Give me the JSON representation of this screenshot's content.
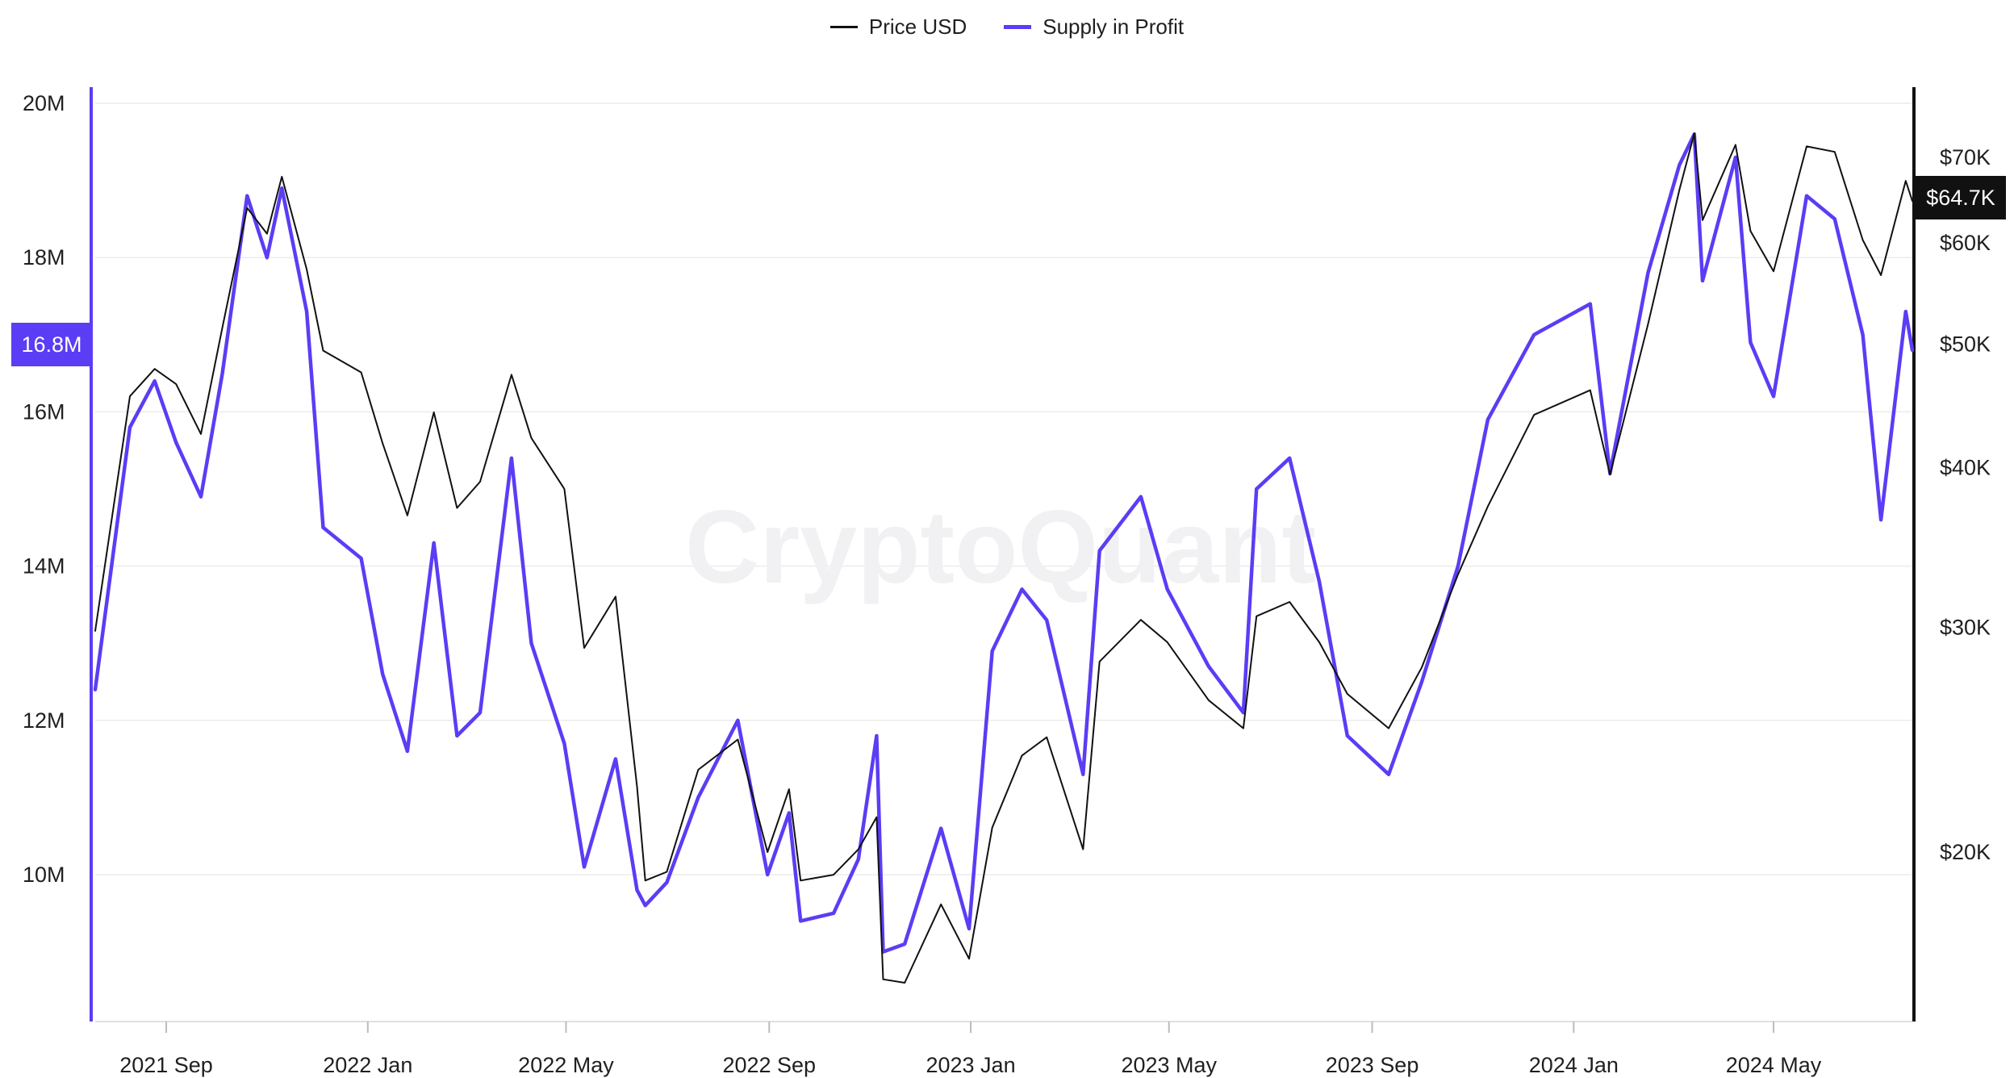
{
  "legend": {
    "price_label": "Price USD",
    "supply_label": "Supply in Profit"
  },
  "watermark": "CryptoQuant",
  "colors": {
    "price": "#111111",
    "supply": "#5a3df5",
    "grid": "#ececec",
    "badge_price_bg": "#111111",
    "badge_supply_bg": "#5a3df5"
  },
  "badges": {
    "price_current": "$64.7K",
    "supply_current": "16.8M"
  },
  "chart_data": {
    "type": "line",
    "x_axis": {
      "type": "date",
      "range": [
        "2021-07-20",
        "2024-07-24"
      ],
      "tick_labels": [
        "2021 Sep",
        "2022 Jan",
        "2022 May",
        "2022 Sep",
        "2023 Jan",
        "2023 May",
        "2023 Sep",
        "2024 Jan",
        "2024 May"
      ],
      "tick_dates": [
        "2021-09-01",
        "2022-01-01",
        "2022-05-01",
        "2022-09-01",
        "2023-01-01",
        "2023-05-01",
        "2023-09-01",
        "2024-01-01",
        "2024-05-01"
      ]
    },
    "y_left": {
      "series": "Supply in Profit",
      "range": [
        8000000,
        20000000
      ],
      "ticks": [
        10000000,
        12000000,
        14000000,
        16000000,
        18000000,
        20000000
      ],
      "tick_labels": [
        "10M",
        "12M",
        "14M",
        "16M",
        "18M",
        "20M"
      ]
    },
    "y_right": {
      "series": "Price USD",
      "scale": "log",
      "ticks": [
        20000,
        30000,
        40000,
        50000,
        60000,
        70000
      ],
      "tick_labels": [
        "$20K",
        "$30K",
        "$40K",
        "$50K",
        "$60K",
        "$70K"
      ]
    },
    "grid": true,
    "legend_position": "top-center",
    "series": [
      {
        "name": "Price USD",
        "axis": "right",
        "points": [
          [
            "2021-07-20",
            29800
          ],
          [
            "2021-08-10",
            45500
          ],
          [
            "2021-08-25",
            47800
          ],
          [
            "2021-09-07",
            46500
          ],
          [
            "2021-09-22",
            42500
          ],
          [
            "2021-10-05",
            51500
          ],
          [
            "2021-10-20",
            63900
          ],
          [
            "2021-11-01",
            61000
          ],
          [
            "2021-11-10",
            67600
          ],
          [
            "2021-11-25",
            57200
          ],
          [
            "2021-12-05",
            49400
          ],
          [
            "2021-12-28",
            47500
          ],
          [
            "2022-01-10",
            41800
          ],
          [
            "2022-01-25",
            36700
          ],
          [
            "2022-02-10",
            44200
          ],
          [
            "2022-02-24",
            37200
          ],
          [
            "2022-03-10",
            39000
          ],
          [
            "2022-03-29",
            47300
          ],
          [
            "2022-04-10",
            42200
          ],
          [
            "2022-04-30",
            38500
          ],
          [
            "2022-05-12",
            28900
          ],
          [
            "2022-05-31",
            31700
          ],
          [
            "2022-06-13",
            22500
          ],
          [
            "2022-06-18",
            19000
          ],
          [
            "2022-07-01",
            19300
          ],
          [
            "2022-07-20",
            23200
          ],
          [
            "2022-08-13",
            24500
          ],
          [
            "2022-08-31",
            20000
          ],
          [
            "2022-09-13",
            22400
          ],
          [
            "2022-09-20",
            19000
          ],
          [
            "2022-10-10",
            19200
          ],
          [
            "2022-10-25",
            20100
          ],
          [
            "2022-11-05",
            21300
          ],
          [
            "2022-11-09",
            15900
          ],
          [
            "2022-11-22",
            15800
          ],
          [
            "2022-12-14",
            18200
          ],
          [
            "2022-12-31",
            16500
          ],
          [
            "2023-01-14",
            20900
          ],
          [
            "2023-02-01",
            23800
          ],
          [
            "2023-02-16",
            24600
          ],
          [
            "2023-03-10",
            20100
          ],
          [
            "2023-03-20",
            28200
          ],
          [
            "2023-04-14",
            30400
          ],
          [
            "2023-04-30",
            29200
          ],
          [
            "2023-05-25",
            26300
          ],
          [
            "2023-06-15",
            25000
          ],
          [
            "2023-06-23",
            30600
          ],
          [
            "2023-07-13",
            31400
          ],
          [
            "2023-07-31",
            29200
          ],
          [
            "2023-08-17",
            26600
          ],
          [
            "2023-09-11",
            25000
          ],
          [
            "2023-10-01",
            27900
          ],
          [
            "2023-10-23",
            33000
          ],
          [
            "2023-11-10",
            37300
          ],
          [
            "2023-12-08",
            44000
          ],
          [
            "2024-01-11",
            46000
          ],
          [
            "2024-01-23",
            39500
          ],
          [
            "2024-02-15",
            51800
          ],
          [
            "2024-03-05",
            66000
          ],
          [
            "2024-03-14",
            73100
          ],
          [
            "2024-03-19",
            62500
          ],
          [
            "2024-04-08",
            71600
          ],
          [
            "2024-04-17",
            61300
          ],
          [
            "2024-05-01",
            57000
          ],
          [
            "2024-05-21",
            71400
          ],
          [
            "2024-06-07",
            70700
          ],
          [
            "2024-06-24",
            60300
          ],
          [
            "2024-07-05",
            56600
          ],
          [
            "2024-07-20",
            67100
          ],
          [
            "2024-07-24",
            64700
          ]
        ]
      },
      {
        "name": "Supply in Profit",
        "axis": "left",
        "points": [
          [
            "2021-07-20",
            12400000
          ],
          [
            "2021-08-10",
            15800000
          ],
          [
            "2021-08-25",
            16400000
          ],
          [
            "2021-09-07",
            15600000
          ],
          [
            "2021-09-22",
            14900000
          ],
          [
            "2021-10-05",
            16500000
          ],
          [
            "2021-10-20",
            18800000
          ],
          [
            "2021-11-01",
            18000000
          ],
          [
            "2021-11-10",
            18900000
          ],
          [
            "2021-11-25",
            17300000
          ],
          [
            "2021-12-05",
            14500000
          ],
          [
            "2021-12-28",
            14100000
          ],
          [
            "2022-01-10",
            12600000
          ],
          [
            "2022-01-25",
            11600000
          ],
          [
            "2022-02-10",
            14300000
          ],
          [
            "2022-02-24",
            11800000
          ],
          [
            "2022-03-10",
            12100000
          ],
          [
            "2022-03-29",
            15400000
          ],
          [
            "2022-04-10",
            13000000
          ],
          [
            "2022-04-30",
            11700000
          ],
          [
            "2022-05-12",
            10100000
          ],
          [
            "2022-05-31",
            11500000
          ],
          [
            "2022-06-13",
            9800000
          ],
          [
            "2022-06-18",
            9600000
          ],
          [
            "2022-07-01",
            9900000
          ],
          [
            "2022-07-20",
            11000000
          ],
          [
            "2022-08-13",
            12000000
          ],
          [
            "2022-08-31",
            10000000
          ],
          [
            "2022-09-13",
            10800000
          ],
          [
            "2022-09-20",
            9400000
          ],
          [
            "2022-10-10",
            9500000
          ],
          [
            "2022-10-25",
            10200000
          ],
          [
            "2022-11-05",
            11800000
          ],
          [
            "2022-11-09",
            9000000
          ],
          [
            "2022-11-22",
            9100000
          ],
          [
            "2022-12-14",
            10600000
          ],
          [
            "2022-12-31",
            9300000
          ],
          [
            "2023-01-14",
            12900000
          ],
          [
            "2023-02-01",
            13700000
          ],
          [
            "2023-02-16",
            13300000
          ],
          [
            "2023-03-10",
            11300000
          ],
          [
            "2023-03-20",
            14200000
          ],
          [
            "2023-04-14",
            14900000
          ],
          [
            "2023-04-30",
            13700000
          ],
          [
            "2023-05-25",
            12700000
          ],
          [
            "2023-06-15",
            12100000
          ],
          [
            "2023-06-23",
            15000000
          ],
          [
            "2023-07-13",
            15400000
          ],
          [
            "2023-07-31",
            13800000
          ],
          [
            "2023-08-17",
            11800000
          ],
          [
            "2023-09-11",
            11300000
          ],
          [
            "2023-10-01",
            12500000
          ],
          [
            "2023-10-23",
            14000000
          ],
          [
            "2023-11-10",
            15900000
          ],
          [
            "2023-12-08",
            17000000
          ],
          [
            "2024-01-11",
            17400000
          ],
          [
            "2024-01-23",
            15200000
          ],
          [
            "2024-02-15",
            17800000
          ],
          [
            "2024-03-05",
            19200000
          ],
          [
            "2024-03-14",
            19600000
          ],
          [
            "2024-03-19",
            17700000
          ],
          [
            "2024-04-08",
            19300000
          ],
          [
            "2024-04-17",
            16900000
          ],
          [
            "2024-05-01",
            16200000
          ],
          [
            "2024-05-21",
            18800000
          ],
          [
            "2024-06-07",
            18500000
          ],
          [
            "2024-06-24",
            17000000
          ],
          [
            "2024-07-05",
            14600000
          ],
          [
            "2024-07-20",
            17300000
          ],
          [
            "2024-07-24",
            16800000
          ]
        ]
      }
    ]
  }
}
